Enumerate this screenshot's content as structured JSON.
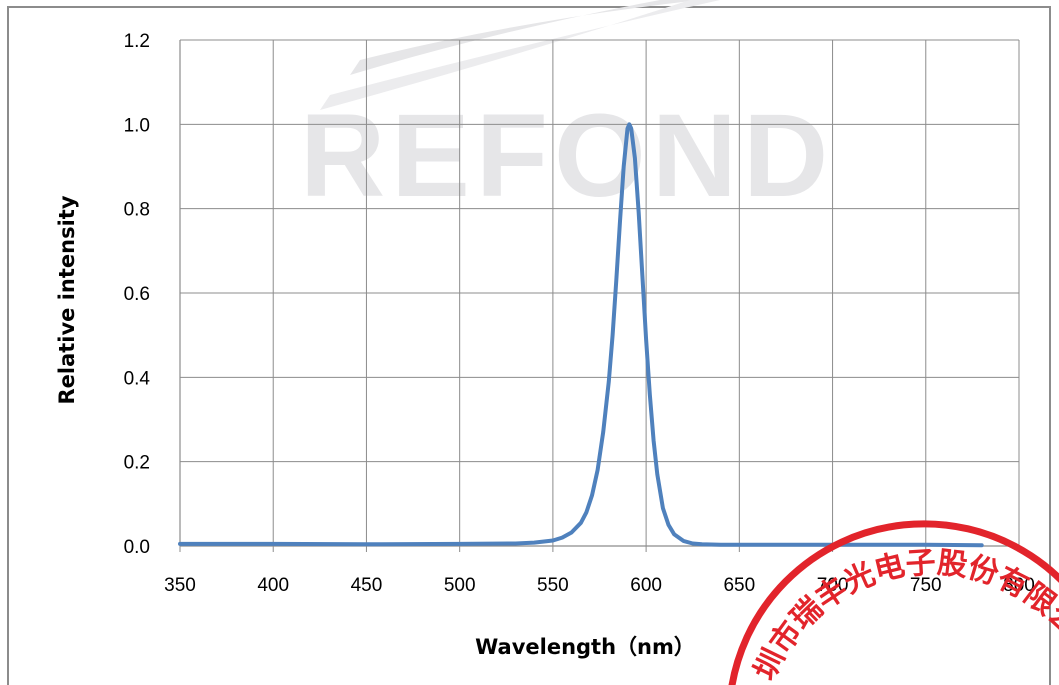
{
  "chart_data": {
    "type": "line",
    "title": "",
    "xlabel": "Wavelength（nm）",
    "ylabel": "Relative intensity",
    "xlim": [
      350,
      800
    ],
    "ylim": [
      0,
      1.2
    ],
    "x_ticks": [
      "350",
      "400",
      "450",
      "500",
      "550",
      "600",
      "650",
      "700",
      "750",
      "800"
    ],
    "y_ticks": [
      "0.0",
      "0.2",
      "0.4",
      "0.6",
      "0.8",
      "1.0",
      "1.2"
    ],
    "grid": true,
    "legend": "none",
    "series": [
      {
        "color": "#4f81bd",
        "peak_wavelength": 591,
        "x": [
          350,
          400,
          450,
          500,
          530,
          540,
          550,
          555,
          560,
          565,
          568,
          571,
          574,
          577,
          580,
          582,
          584,
          586,
          588,
          590,
          591,
          592,
          594,
          596,
          598,
          600,
          602,
          604,
          606,
          609,
          612,
          615,
          620,
          625,
          630,
          640,
          650,
          700,
          750,
          780
        ],
        "y": [
          0.005,
          0.005,
          0.004,
          0.005,
          0.006,
          0.008,
          0.013,
          0.02,
          0.032,
          0.055,
          0.08,
          0.12,
          0.18,
          0.27,
          0.39,
          0.5,
          0.63,
          0.77,
          0.9,
          0.99,
          1.0,
          0.99,
          0.92,
          0.79,
          0.64,
          0.49,
          0.36,
          0.25,
          0.17,
          0.09,
          0.05,
          0.028,
          0.012,
          0.006,
          0.004,
          0.003,
          0.003,
          0.003,
          0.003,
          0.002
        ]
      }
    ]
  },
  "watermark": {
    "logo_text": "REFOND",
    "color": "#e6e6e8"
  },
  "seal": {
    "text": "圳市瑞丰光电子股份有限公",
    "color": "#e2242b"
  }
}
